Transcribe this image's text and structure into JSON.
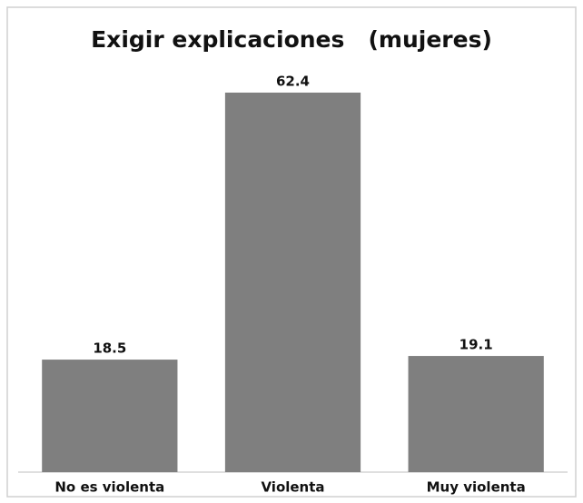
{
  "chart_data": {
    "type": "bar",
    "title": "Exigir explicaciones   (mujeres)",
    "categories": [
      "No es violenta",
      "Violenta",
      "Muy violenta"
    ],
    "values": [
      18.5,
      62.4,
      19.1
    ],
    "color": "#7f7f7f"
  }
}
